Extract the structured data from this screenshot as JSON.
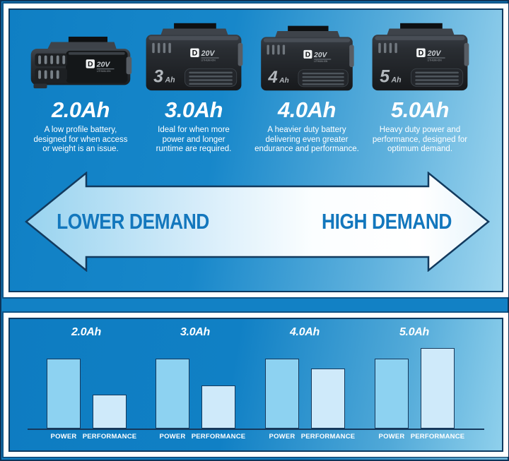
{
  "top_panel": {
    "batteries": [
      {
        "capacity": "2.0Ah",
        "badge_num": "",
        "badge_unit": "",
        "description_lines": [
          "A low profile battery,",
          "designed for when access",
          "or weight is an issue."
        ]
      },
      {
        "capacity": "3.0Ah",
        "badge_num": "3",
        "badge_unit": "Ah",
        "description_lines": [
          "Ideal for when more",
          "power and longer",
          "runtime are required."
        ]
      },
      {
        "capacity": "4.0Ah",
        "badge_num": "4",
        "badge_unit": "Ah",
        "description_lines": [
          "A heavier duty battery",
          "delivering even greater",
          "endurance and performance."
        ]
      },
      {
        "capacity": "5.0Ah",
        "badge_num": "5",
        "badge_unit": "Ah",
        "description_lines": [
          "Heavy duty power and",
          "performance, designed for",
          "optimum demand."
        ]
      }
    ],
    "battery_logo": {
      "letter": "D",
      "voltage": "20V",
      "chemistry": "LITHIUM-ION"
    },
    "arrow": {
      "left_label": "LOWER DEMAND",
      "right_label": "HIGH DEMAND"
    }
  },
  "chart_data": {
    "type": "bar",
    "title": "",
    "xlabel": "",
    "ylabel": "",
    "categories": [
      "2.0Ah",
      "3.0Ah",
      "4.0Ah",
      "5.0Ah"
    ],
    "series": [
      {
        "name": "POWER",
        "values": [
          100,
          100,
          100,
          100
        ]
      },
      {
        "name": "PERFORMANCE",
        "values": [
          48,
          62,
          86,
          115
        ]
      }
    ],
    "unit": "relative height (POWER bar = 100)",
    "grid": false,
    "legend_position": "labels under each bar",
    "ylim": [
      0,
      157
    ],
    "colors": {
      "power_bar": "#8dd2f1",
      "performance_bar": "#cfeafa",
      "outline": "#16395c"
    }
  },
  "colors": {
    "background_blue": "#1281c5",
    "panel_frame_white": "#ffffff",
    "frame_navy": "#0e3a60",
    "demand_text_blue": "#1377bd",
    "arrow_fill_light": "#9ed5f0",
    "arrow_fill_white": "#ffffff",
    "text_white": "#ffffff"
  }
}
